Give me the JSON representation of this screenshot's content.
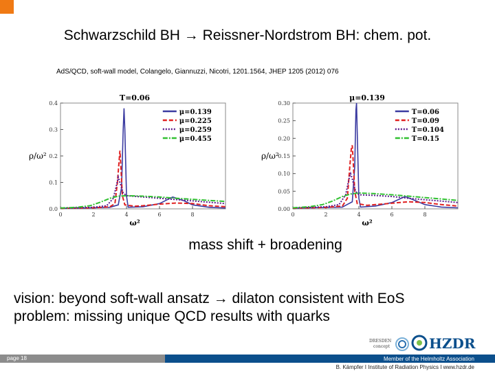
{
  "slide": {
    "title": "Schwarzschild BH → Reissner-Nordstrom BH: chem. pot.",
    "subtitle": "AdS/QCD, soft-wall model, Colangelo, Giannuzzi, Nicotri, 1201.1564, JHEP 1205 (2012) 076",
    "caption": "mass shift + broadening",
    "vision_line1": "vision: beyond soft-wall ansatz → dilaton consistent with EoS",
    "vision_line2": "problem: missing unique QCD results with quarks",
    "page_label": "page 18",
    "member_text": "Member of the Helmholtz Association",
    "footer_text": "B. Kämpfer  I  Institute of Radiation Physics  I  www.hzdr.de",
    "logo_dresden_text": "DRESDEN concept",
    "logo_hzdr_text": "HZDR",
    "colors": {
      "accent": "#f07a14",
      "footer_blue": "#0b4f8c",
      "footer_grey": "#8c8c8c"
    }
  },
  "chart_data": [
    {
      "type": "line",
      "title": "T=0.06",
      "xlabel": "ω²",
      "ylabel": "ρ/ω²",
      "xlim": [
        0,
        10
      ],
      "ylim": [
        0,
        0.4
      ],
      "xticks": [
        0,
        2,
        4,
        6,
        8
      ],
      "yticks": [
        0.0,
        0.1,
        0.2,
        0.3,
        0.4
      ],
      "xtick_labels": [
        "0",
        "2",
        "4",
        "6",
        "8"
      ],
      "ytick_labels": [
        "0.0",
        "0.1",
        "0.2",
        "0.3",
        "0.4"
      ],
      "legend_position": "top-right",
      "series": [
        {
          "name": "μ=0.139",
          "color": "#3a3aa0",
          "dash": "solid",
          "points": [
            [
              0,
              0.002
            ],
            [
              1,
              0.003
            ],
            [
              2,
              0.004
            ],
            [
              3,
              0.006
            ],
            [
              3.5,
              0.015
            ],
            [
              3.7,
              0.08
            ],
            [
              3.8,
              0.3
            ],
            [
              3.85,
              0.38
            ],
            [
              3.9,
              0.3
            ],
            [
              4.0,
              0.05
            ],
            [
              4.1,
              0.006
            ],
            [
              5,
              0.008
            ],
            [
              6,
              0.02
            ],
            [
              6.8,
              0.045
            ],
            [
              7.5,
              0.03
            ],
            [
              8,
              0.015
            ],
            [
              9,
              0.006
            ],
            [
              10,
              0.003
            ]
          ]
        },
        {
          "name": "μ=0.225",
          "color": "#e02020",
          "dash": "6,3",
          "points": [
            [
              0,
              0.002
            ],
            [
              1,
              0.003
            ],
            [
              2,
              0.004
            ],
            [
              3,
              0.008
            ],
            [
              3.3,
              0.02
            ],
            [
              3.45,
              0.1
            ],
            [
              3.55,
              0.18
            ],
            [
              3.6,
              0.22
            ],
            [
              3.65,
              0.17
            ],
            [
              3.75,
              0.05
            ],
            [
              3.9,
              0.015
            ],
            [
              4.5,
              0.01
            ],
            [
              5,
              0.012
            ],
            [
              6,
              0.018
            ],
            [
              7,
              0.022
            ],
            [
              8,
              0.02
            ],
            [
              9,
              0.012
            ],
            [
              10,
              0.008
            ]
          ]
        },
        {
          "name": "μ=0.259",
          "color": "#5a1a8c",
          "dash": "2,2",
          "points": [
            [
              0,
              0.003
            ],
            [
              1,
              0.004
            ],
            [
              2,
              0.006
            ],
            [
              2.8,
              0.012
            ],
            [
              3.2,
              0.04
            ],
            [
              3.4,
              0.09
            ],
            [
              3.5,
              0.12
            ],
            [
              3.6,
              0.1
            ],
            [
              3.8,
              0.06
            ],
            [
              4.0,
              0.05
            ],
            [
              5,
              0.045
            ],
            [
              6,
              0.04
            ],
            [
              7,
              0.035
            ],
            [
              8,
              0.03
            ],
            [
              9,
              0.025
            ],
            [
              10,
              0.02
            ]
          ]
        },
        {
          "name": "μ=0.455",
          "color": "#30c030",
          "dash": "7,2,2,2",
          "points": [
            [
              0,
              0.003
            ],
            [
              1,
              0.006
            ],
            [
              1.8,
              0.012
            ],
            [
              2.4,
              0.025
            ],
            [
              3.0,
              0.04
            ],
            [
              3.5,
              0.048
            ],
            [
              4,
              0.05
            ],
            [
              5,
              0.048
            ],
            [
              6,
              0.045
            ],
            [
              7,
              0.04
            ],
            [
              8,
              0.036
            ],
            [
              9,
              0.032
            ],
            [
              10,
              0.028
            ]
          ]
        }
      ]
    },
    {
      "type": "line",
      "title": "μ=0.139",
      "xlabel": "ω²",
      "ylabel": "ρ/ω²",
      "xlim": [
        0,
        10
      ],
      "ylim": [
        0,
        0.3
      ],
      "xticks": [
        0,
        2,
        4,
        6,
        8
      ],
      "yticks": [
        0.0,
        0.05,
        0.1,
        0.15,
        0.2,
        0.25,
        0.3
      ],
      "xtick_labels": [
        "0",
        "2",
        "4",
        "6",
        "8"
      ],
      "ytick_labels": [
        "0.00",
        "0.05",
        "0.10",
        "0.15",
        "0.20",
        "0.25",
        "0.30"
      ],
      "legend_position": "top-right",
      "series": [
        {
          "name": "T=0.06",
          "color": "#3a3aa0",
          "dash": "solid",
          "points": [
            [
              0,
              0.002
            ],
            [
              1,
              0.003
            ],
            [
              2,
              0.004
            ],
            [
              3,
              0.005
            ],
            [
              3.6,
              0.02
            ],
            [
              3.75,
              0.12
            ],
            [
              3.82,
              0.28
            ],
            [
              3.86,
              0.3
            ],
            [
              3.9,
              0.22
            ],
            [
              4.0,
              0.03
            ],
            [
              4.1,
              0.005
            ],
            [
              5,
              0.008
            ],
            [
              6,
              0.018
            ],
            [
              6.8,
              0.035
            ],
            [
              7.5,
              0.022
            ],
            [
              8,
              0.012
            ],
            [
              9,
              0.005
            ],
            [
              10,
              0.003
            ]
          ]
        },
        {
          "name": "T=0.09",
          "color": "#e02020",
          "dash": "6,3",
          "points": [
            [
              0,
              0.002
            ],
            [
              1,
              0.003
            ],
            [
              2,
              0.004
            ],
            [
              3,
              0.008
            ],
            [
              3.3,
              0.03
            ],
            [
              3.45,
              0.12
            ],
            [
              3.55,
              0.175
            ],
            [
              3.6,
              0.18
            ],
            [
              3.65,
              0.14
            ],
            [
              3.75,
              0.05
            ],
            [
              3.9,
              0.015
            ],
            [
              4.5,
              0.01
            ],
            [
              5,
              0.012
            ],
            [
              6,
              0.016
            ],
            [
              7,
              0.02
            ],
            [
              8,
              0.018
            ],
            [
              9,
              0.012
            ],
            [
              10,
              0.008
            ]
          ]
        },
        {
          "name": "T=0.104",
          "color": "#5a1a8c",
          "dash": "2,2",
          "points": [
            [
              0,
              0.003
            ],
            [
              1,
              0.004
            ],
            [
              2,
              0.006
            ],
            [
              2.8,
              0.012
            ],
            [
              3.2,
              0.04
            ],
            [
              3.4,
              0.085
            ],
            [
              3.5,
              0.1
            ],
            [
              3.6,
              0.085
            ],
            [
              3.8,
              0.05
            ],
            [
              4.0,
              0.04
            ],
            [
              5,
              0.038
            ],
            [
              6,
              0.035
            ],
            [
              7,
              0.03
            ],
            [
              8,
              0.026
            ],
            [
              9,
              0.022
            ],
            [
              10,
              0.018
            ]
          ]
        },
        {
          "name": "T=0.15",
          "color": "#30c030",
          "dash": "7,2,2,2",
          "points": [
            [
              0,
              0.003
            ],
            [
              1,
              0.006
            ],
            [
              1.8,
              0.012
            ],
            [
              2.4,
              0.022
            ],
            [
              3.0,
              0.035
            ],
            [
              3.5,
              0.042
            ],
            [
              4,
              0.045
            ],
            [
              5,
              0.043
            ],
            [
              6,
              0.04
            ],
            [
              7,
              0.036
            ],
            [
              8,
              0.032
            ],
            [
              9,
              0.028
            ],
            [
              10,
              0.024
            ]
          ]
        }
      ]
    }
  ]
}
